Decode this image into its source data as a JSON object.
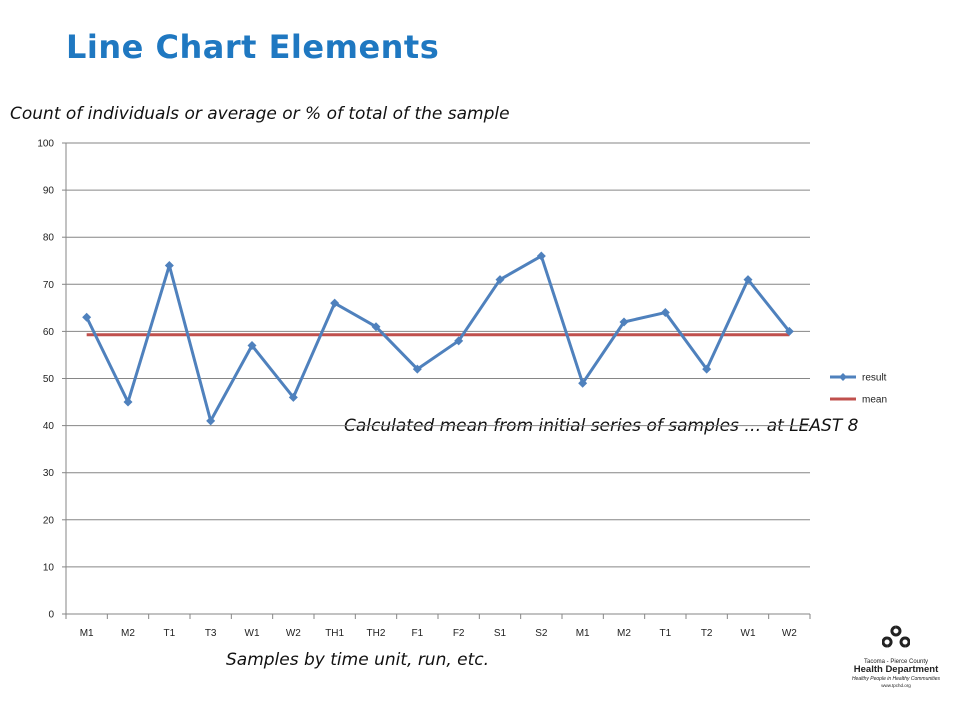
{
  "slide": {
    "title": "Line Chart Elements",
    "annotations": {
      "y_axis": "Count of individuals or average or % of total of the sample",
      "mean": "Calculated mean from initial series of samples … at LEAST 8",
      "x_axis": "Samples by time unit, run, etc."
    }
  },
  "logo": {
    "icon": "recycle-icon",
    "org": "Tacoma - Pierce County",
    "dept": "Health Department",
    "tagline": "Healthy People in Healthy Communities",
    "url": "www.tpchd.org"
  },
  "chart_data": {
    "type": "line",
    "title": "",
    "xlabel": "",
    "ylabel": "",
    "categories": [
      "M1",
      "M2",
      "T1",
      "T3",
      "W1",
      "W2",
      "TH1",
      "TH2",
      "F1",
      "F2",
      "S1",
      "S2",
      "M1",
      "M2",
      "T1",
      "T2",
      "W1",
      "W2"
    ],
    "series": [
      {
        "name": "result",
        "color": "#4f81bd",
        "marker": "diamond",
        "values": [
          63,
          45,
          74,
          41,
          57,
          46,
          66,
          61,
          52,
          58,
          71,
          76,
          49,
          62,
          64,
          52,
          71,
          60
        ]
      },
      {
        "name": "mean",
        "color": "#c0504d",
        "marker": "none",
        "values": [
          59.3,
          59.3,
          59.3,
          59.3,
          59.3,
          59.3,
          59.3,
          59.3,
          59.3,
          59.3,
          59.3,
          59.3,
          59.3,
          59.3,
          59.3,
          59.3,
          59.3,
          59.3
        ]
      }
    ],
    "ylim": [
      0,
      100
    ],
    "yticks": [
      0,
      10,
      20,
      30,
      40,
      50,
      60,
      70,
      80,
      90,
      100
    ],
    "grid": "horizontal",
    "legend_position": "right"
  }
}
